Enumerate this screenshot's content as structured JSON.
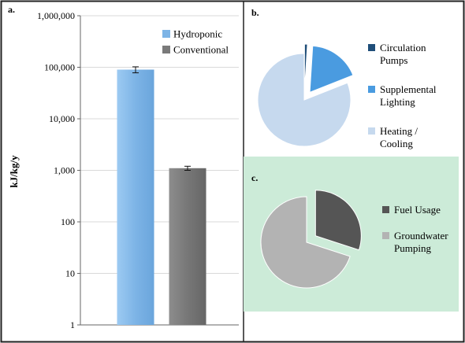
{
  "chart_data": [
    {
      "panel_label": "a.",
      "type": "bar",
      "scale": "log",
      "ylabel": "kJ/kg/y",
      "ylim": [
        1,
        1000000
      ],
      "yticks": [
        "1",
        "10",
        "100",
        "1,000",
        "10,000",
        "100,000",
        "1,000,000"
      ],
      "categories": [
        "Hydroponic",
        "Conventional"
      ],
      "values": [
        90000,
        1100
      ],
      "error": [
        12000,
        100
      ],
      "colors": [
        "#7db4e6",
        "#7a7a7a"
      ],
      "legend": {
        "position": "top-right",
        "entries": [
          "Hydroponic",
          "Conventional"
        ]
      },
      "grid": false
    },
    {
      "panel_label": "b.",
      "type": "pie",
      "labels": [
        "Circulation Pumps",
        "Supplemental Lighting",
        "Heating / Cooling"
      ],
      "label_lines": [
        [
          "Circulation",
          "Pumps"
        ],
        [
          "Supplemental",
          "Lighting"
        ],
        [
          "Heating /",
          "Cooling"
        ]
      ],
      "values": [
        1,
        18,
        81
      ],
      "colors": [
        "#1f4e79",
        "#4a9be0",
        "#c6d9ee"
      ],
      "legend": {
        "position": "right"
      }
    },
    {
      "panel_label": "c.",
      "type": "pie",
      "labels": [
        "Fuel Usage",
        "Groundwater Pumping"
      ],
      "label_lines": [
        [
          "Fuel Usage"
        ],
        [
          "Groundwater",
          "Pumping"
        ]
      ],
      "values": [
        30,
        70
      ],
      "colors": [
        "#555555",
        "#b3b3b3"
      ],
      "background": "#ccebd8",
      "legend": {
        "position": "right"
      }
    }
  ]
}
